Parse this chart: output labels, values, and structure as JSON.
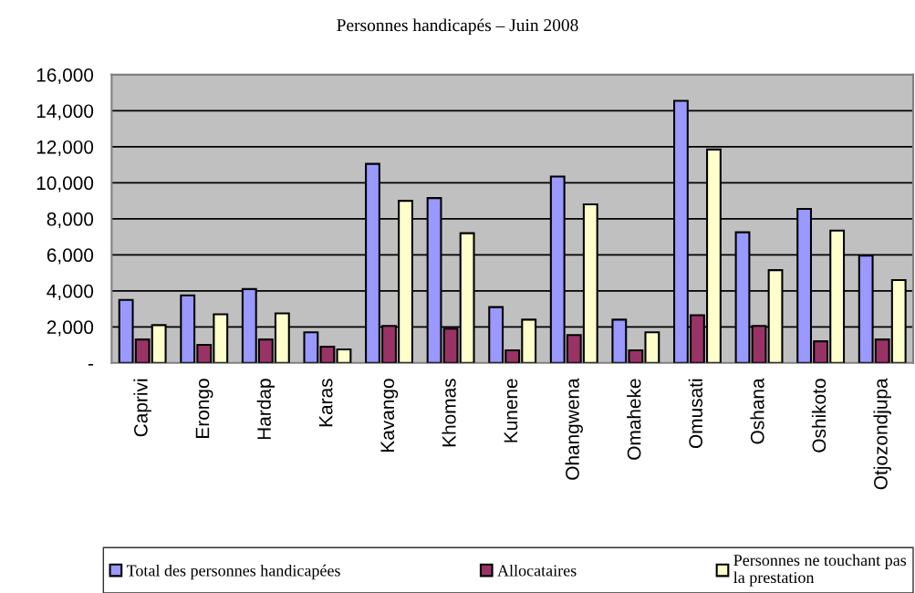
{
  "chart_data": {
    "type": "bar",
    "title": "Personnes handicapés – Juin 2008",
    "categories": [
      "Caprivi",
      "Erongo",
      "Hardap",
      "Karas",
      "Kavango",
      "Khomas",
      "Kunene",
      "Ohangwena",
      "Omaheke",
      "Omusati",
      "Oshana",
      "Oshikoto",
      "Otjozondjupa"
    ],
    "series": [
      {
        "name": "Total des personnes handicapées",
        "color": "#9999ff",
        "values": [
          3500,
          3750,
          4100,
          1700,
          11050,
          9150,
          3100,
          10350,
          2400,
          14550,
          7250,
          8550,
          5950
        ]
      },
      {
        "name": "Allocataires",
        "color": "#993366",
        "values": [
          1300,
          1000,
          1300,
          900,
          2050,
          1900,
          700,
          1550,
          700,
          2650,
          2050,
          1200,
          1300
        ]
      },
      {
        "name": "Personnes ne touchant pas\nla prestation",
        "color": "#ffffcc",
        "values": [
          2100,
          2700,
          2750,
          750,
          9000,
          7200,
          2400,
          8800,
          1700,
          11850,
          5150,
          7350,
          4600
        ]
      }
    ],
    "ylim": [
      0,
      16000
    ],
    "yticks": [
      {
        "value": 0,
        "label": "-"
      },
      {
        "value": 2000,
        "label": "2,000"
      },
      {
        "value": 4000,
        "label": "4,000"
      },
      {
        "value": 6000,
        "label": "6,000"
      },
      {
        "value": 8000,
        "label": "8,000"
      },
      {
        "value": 10000,
        "label": "10,000"
      },
      {
        "value": 12000,
        "label": "12,000"
      },
      {
        "value": 14000,
        "label": "14,000"
      },
      {
        "value": 16000,
        "label": "16,000"
      }
    ],
    "grid": "y",
    "legend": "bottom"
  }
}
